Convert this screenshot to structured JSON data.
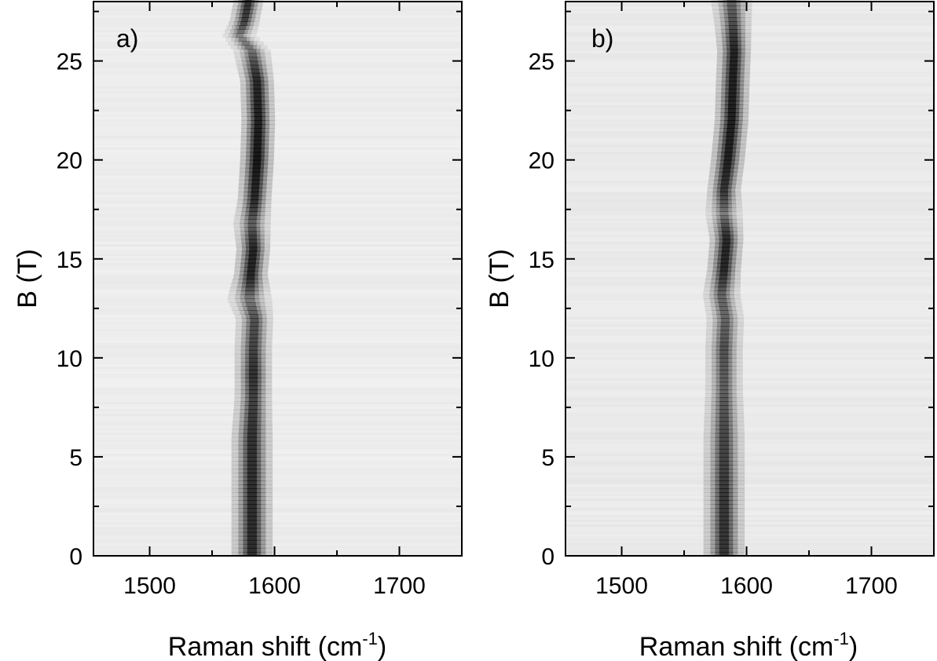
{
  "chart_data": [
    {
      "type": "heatmap",
      "panel_label": "a)",
      "xlabel": "Raman shift (cm",
      "xlabel_sup": "-1",
      "xlabel_close": ")",
      "ylabel": "B (T)",
      "xlim": [
        1455,
        1750
      ],
      "ylim": [
        0,
        28
      ],
      "xticks": [
        1500,
        1600,
        1700
      ],
      "yticks": [
        0,
        5,
        10,
        15,
        20,
        25
      ],
      "colormap": "white-to-black (intensity)",
      "background_intensity": 0.07,
      "ridge": [
        {
          "B": 0,
          "shift": 1582,
          "intensity": 0.78,
          "width": 5.5
        },
        {
          "B": 3,
          "shift": 1582,
          "intensity": 0.78,
          "width": 5.5
        },
        {
          "B": 6,
          "shift": 1582,
          "intensity": 0.74,
          "width": 5.5
        },
        {
          "B": 8,
          "shift": 1583,
          "intensity": 0.64,
          "width": 5
        },
        {
          "B": 9.2,
          "shift": 1583,
          "intensity": 0.76,
          "width": 5
        },
        {
          "B": 10.5,
          "shift": 1583,
          "intensity": 0.62,
          "width": 5
        },
        {
          "B": 12,
          "shift": 1584,
          "intensity": 0.55,
          "width": 5
        },
        {
          "B": 13,
          "shift": 1580,
          "intensity": 0.35,
          "width": 6
        },
        {
          "B": 14.2,
          "shift": 1581,
          "intensity": 0.85,
          "width": 4.5
        },
        {
          "B": 15.5,
          "shift": 1583,
          "intensity": 0.85,
          "width": 4.5
        },
        {
          "B": 16.8,
          "shift": 1582,
          "intensity": 0.45,
          "width": 5
        },
        {
          "B": 18,
          "shift": 1584,
          "intensity": 0.8,
          "width": 4.5
        },
        {
          "B": 20,
          "shift": 1586,
          "intensity": 0.98,
          "width": 4.5
        },
        {
          "B": 22,
          "shift": 1587,
          "intensity": 0.88,
          "width": 4.5
        },
        {
          "B": 24,
          "shift": 1586,
          "intensity": 0.82,
          "width": 4.5
        },
        {
          "B": 25.5,
          "shift": 1582,
          "intensity": 0.4,
          "width": 5
        },
        {
          "B": 26.3,
          "shift": 1572,
          "intensity": 0.32,
          "width": 4.5
        },
        {
          "B": 27,
          "shift": 1576,
          "intensity": 0.65,
          "width": 4
        },
        {
          "B": 28,
          "shift": 1579,
          "intensity": 0.75,
          "width": 4
        }
      ]
    },
    {
      "type": "heatmap",
      "panel_label": "b)",
      "xlabel": "Raman shift (cm",
      "xlabel_sup": "-1",
      "xlabel_close": ")",
      "ylabel": "B (T)",
      "xlim": [
        1455,
        1750
      ],
      "ylim": [
        0,
        28
      ],
      "xticks": [
        1500,
        1600,
        1700
      ],
      "yticks": [
        0,
        5,
        10,
        15,
        20,
        25
      ],
      "colormap": "white-to-black (intensity)",
      "background_intensity": 0.08,
      "ridge": [
        {
          "B": 0,
          "shift": 1582,
          "intensity": 0.72,
          "width": 5.5
        },
        {
          "B": 3,
          "shift": 1582,
          "intensity": 0.7,
          "width": 5.5
        },
        {
          "B": 6,
          "shift": 1582,
          "intensity": 0.6,
          "width": 5.5
        },
        {
          "B": 8.5,
          "shift": 1582,
          "intensity": 0.48,
          "width": 5
        },
        {
          "B": 10.5,
          "shift": 1582,
          "intensity": 0.55,
          "width": 5
        },
        {
          "B": 12,
          "shift": 1583,
          "intensity": 0.45,
          "width": 5
        },
        {
          "B": 13.2,
          "shift": 1580,
          "intensity": 0.45,
          "width": 5
        },
        {
          "B": 14.5,
          "shift": 1582,
          "intensity": 0.82,
          "width": 4.5
        },
        {
          "B": 16,
          "shift": 1584,
          "intensity": 0.82,
          "width": 4.5
        },
        {
          "B": 17.3,
          "shift": 1582,
          "intensity": 0.35,
          "width": 5
        },
        {
          "B": 18.5,
          "shift": 1582,
          "intensity": 0.72,
          "width": 4.5
        },
        {
          "B": 20,
          "shift": 1585,
          "intensity": 0.88,
          "width": 4.5
        },
        {
          "B": 22,
          "shift": 1588,
          "intensity": 0.9,
          "width": 4.5
        },
        {
          "B": 24,
          "shift": 1589,
          "intensity": 0.88,
          "width": 4.5
        },
        {
          "B": 25.5,
          "shift": 1590,
          "intensity": 0.85,
          "width": 4.5
        },
        {
          "B": 27,
          "shift": 1589,
          "intensity": 0.55,
          "width": 5
        },
        {
          "B": 28,
          "shift": 1588,
          "intensity": 0.45,
          "width": 5.5
        }
      ]
    }
  ]
}
